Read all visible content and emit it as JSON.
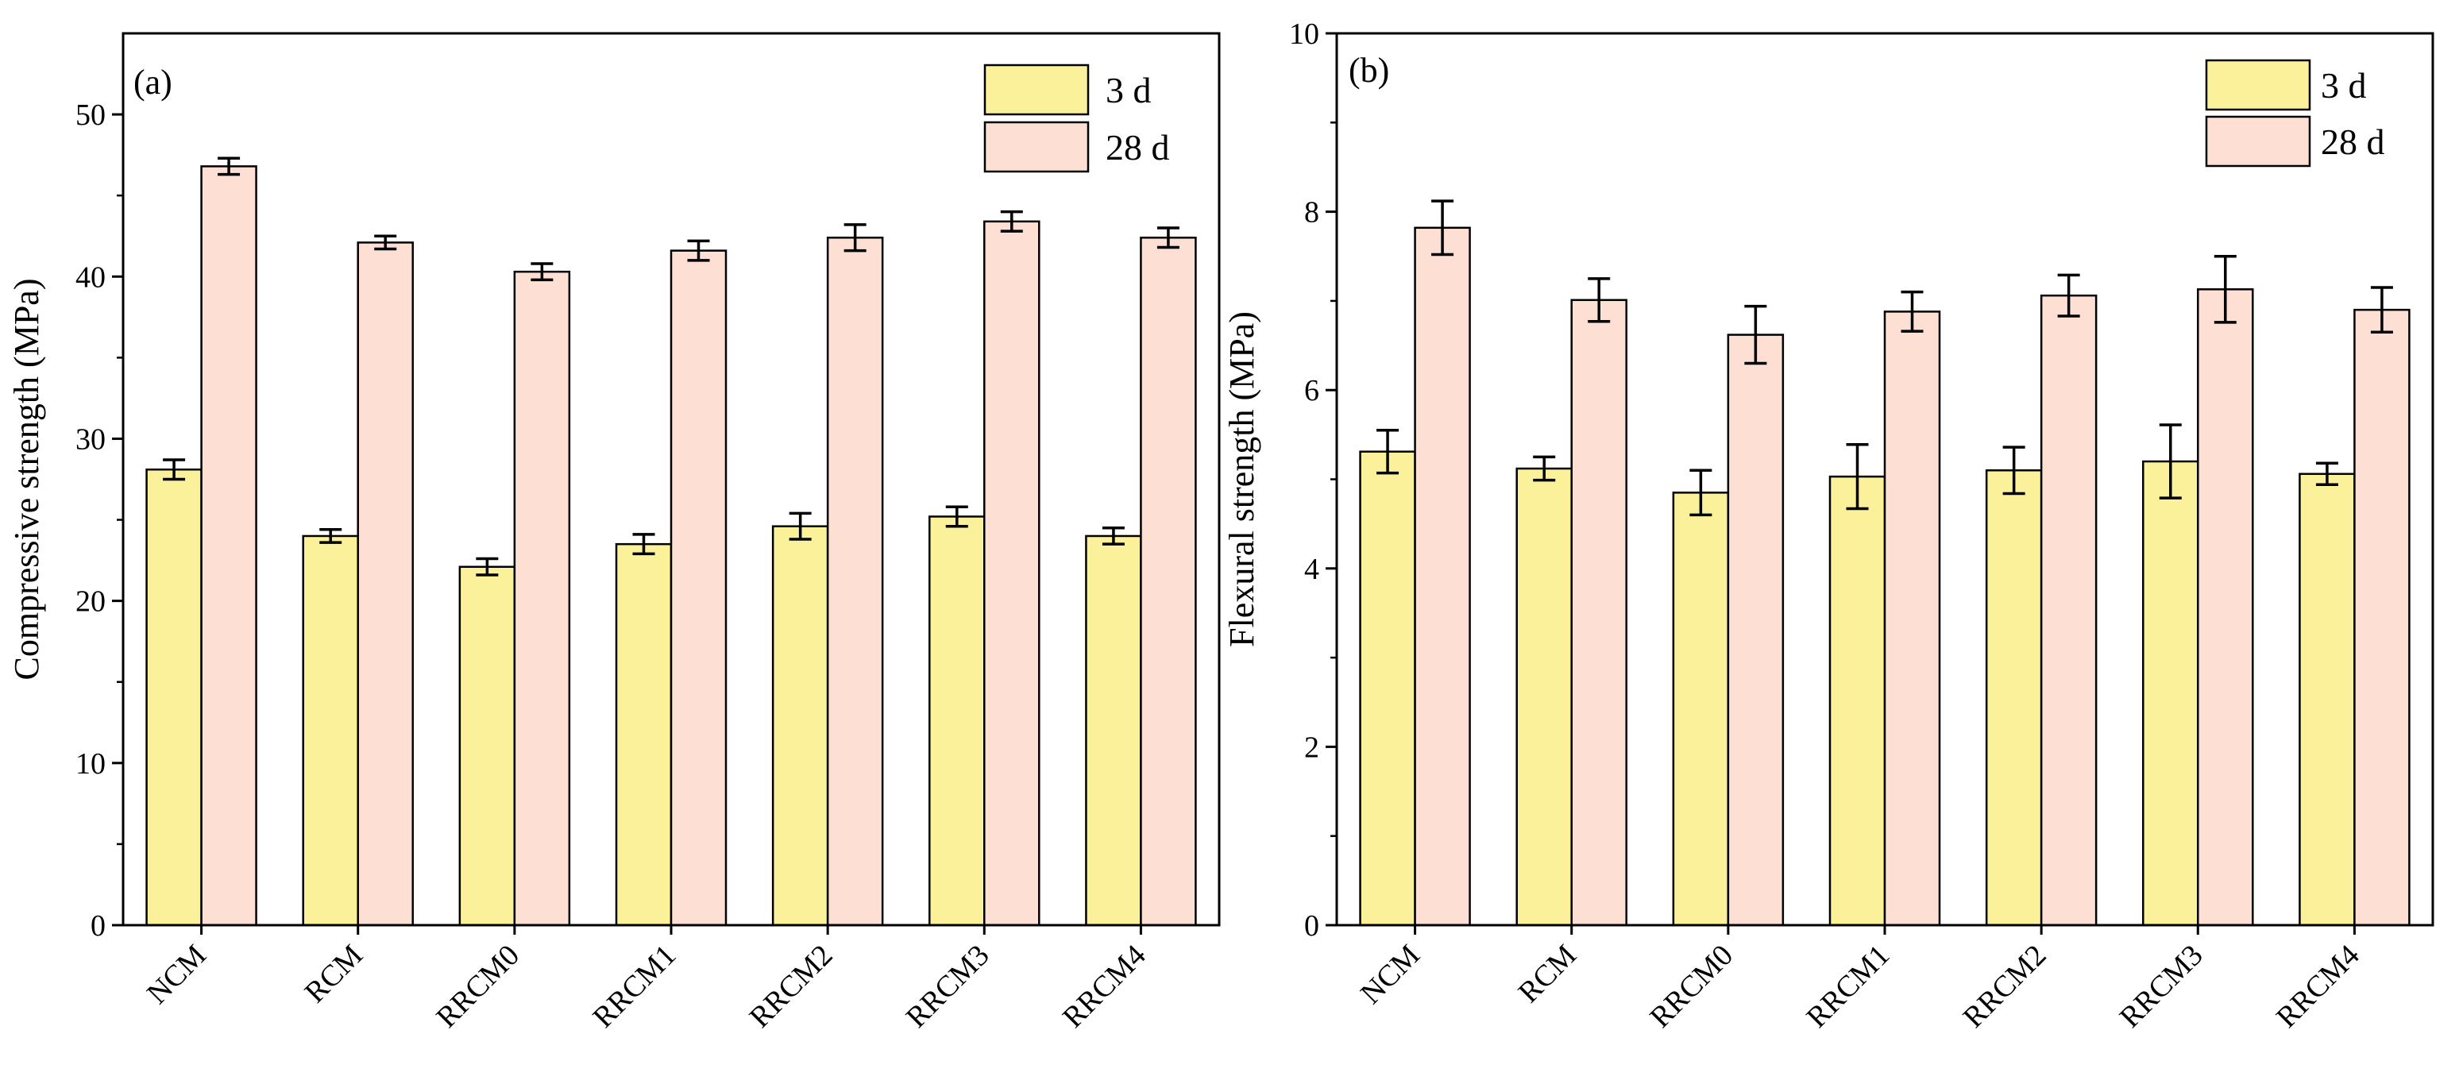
{
  "colors": {
    "bar_3d": "#fbf19b",
    "bar_28d": "#fddfd3",
    "stroke": "#000000",
    "background": "#ffffff"
  },
  "chart_data": [
    {
      "type": "bar",
      "panel_label": "(a)",
      "title": "",
      "xlabel": "",
      "ylabel": "Compressive strength (MPa)",
      "ylim": [
        0,
        55
      ],
      "yticks": [
        0,
        10,
        20,
        30,
        40,
        50
      ],
      "grid": false,
      "legend_position": "top-right",
      "categories": [
        "NCM",
        "RCM",
        "RRCM0",
        "RRCM1",
        "RRCM2",
        "RRCM3",
        "RRCM4"
      ],
      "series": [
        {
          "name": "3 d",
          "color": "#fbf19b",
          "values": [
            28.1,
            24.0,
            22.1,
            23.5,
            24.6,
            25.2,
            24.0
          ],
          "errors": [
            0.6,
            0.4,
            0.5,
            0.6,
            0.8,
            0.6,
            0.5
          ]
        },
        {
          "name": "28 d",
          "color": "#fddfd3",
          "values": [
            46.8,
            42.1,
            40.3,
            41.6,
            42.4,
            43.4,
            42.4
          ],
          "errors": [
            0.5,
            0.4,
            0.5,
            0.6,
            0.8,
            0.6,
            0.6
          ]
        }
      ]
    },
    {
      "type": "bar",
      "panel_label": "(b)",
      "title": "",
      "xlabel": "",
      "ylabel": "Flexural strength (MPa)",
      "ylim": [
        0,
        10
      ],
      "yticks": [
        0,
        2,
        4,
        6,
        8,
        10
      ],
      "grid": false,
      "legend_position": "top-right",
      "categories": [
        "NCM",
        "RCM",
        "RRCM0",
        "RRCM1",
        "RRCM2",
        "RRCM3",
        "RRCM4"
      ],
      "series": [
        {
          "name": "3 d",
          "color": "#fbf19b",
          "values": [
            5.31,
            5.12,
            4.85,
            5.03,
            5.1,
            5.2,
            5.06
          ],
          "errors": [
            0.24,
            0.13,
            0.25,
            0.36,
            0.26,
            0.41,
            0.12
          ]
        },
        {
          "name": "28 d",
          "color": "#fddfd3",
          "values": [
            7.82,
            7.01,
            6.62,
            6.88,
            7.06,
            7.13,
            6.9
          ],
          "errors": [
            0.3,
            0.24,
            0.32,
            0.22,
            0.23,
            0.37,
            0.25
          ]
        }
      ]
    }
  ]
}
